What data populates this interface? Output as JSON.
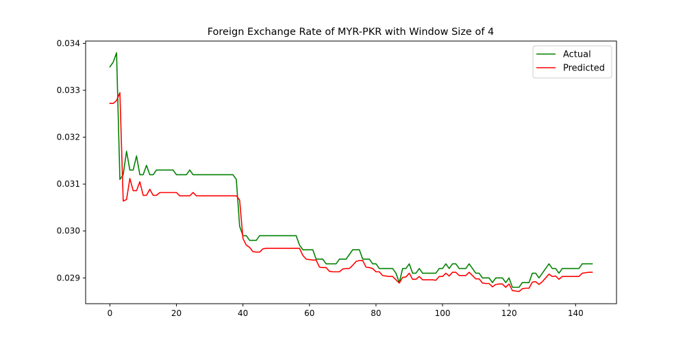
{
  "chart_data": {
    "type": "line",
    "title": "Foreign Exchange Rate of MYR-PKR with Window Size of 4",
    "xlabel": "",
    "ylabel": "",
    "xlim": [
      -7.3,
      152.3
    ],
    "ylim": [
      0.02845,
      0.03405
    ],
    "xticks": [
      0,
      20,
      40,
      60,
      80,
      100,
      120,
      140
    ],
    "xtick_labels": [
      "0",
      "20",
      "40",
      "60",
      "80",
      "100",
      "120",
      "140"
    ],
    "yticks": [
      0.029,
      0.03,
      0.031,
      0.032,
      0.033,
      0.034
    ],
    "ytick_labels": [
      "0.029",
      "0.030",
      "0.031",
      "0.032",
      "0.033",
      "0.034"
    ],
    "grid": false,
    "legend_position": "top-right",
    "series": [
      {
        "name": "Actual",
        "color": "#008000",
        "x": [
          0,
          1,
          2,
          3,
          4,
          5,
          6,
          7,
          8,
          9,
          10,
          11,
          12,
          13,
          14,
          15,
          16,
          17,
          18,
          19,
          20,
          21,
          22,
          23,
          24,
          25,
          26,
          27,
          28,
          29,
          30,
          31,
          32,
          33,
          34,
          35,
          36,
          37,
          38,
          39,
          40,
          41,
          42,
          43,
          44,
          45,
          46,
          47,
          48,
          49,
          50,
          51,
          52,
          53,
          54,
          55,
          56,
          57,
          58,
          59,
          60,
          61,
          62,
          63,
          64,
          65,
          66,
          67,
          68,
          69,
          70,
          71,
          72,
          73,
          74,
          75,
          76,
          77,
          78,
          79,
          80,
          81,
          82,
          83,
          84,
          85,
          86,
          87,
          88,
          89,
          90,
          91,
          92,
          93,
          94,
          95,
          96,
          97,
          98,
          99,
          100,
          101,
          102,
          103,
          104,
          105,
          106,
          107,
          108,
          109,
          110,
          111,
          112,
          113,
          114,
          115,
          116,
          117,
          118,
          119,
          120,
          121,
          122,
          123,
          124,
          125,
          126,
          127,
          128,
          129,
          130,
          131,
          132,
          133,
          134,
          135,
          136,
          137,
          138,
          139,
          140,
          141,
          142,
          143,
          144,
          145
        ],
        "y": [
          0.0335,
          0.0336,
          0.0338,
          0.0311,
          0.0312,
          0.0317,
          0.0313,
          0.0313,
          0.0316,
          0.0312,
          0.0312,
          0.0314,
          0.0312,
          0.0312,
          0.0313,
          0.0313,
          0.0313,
          0.0313,
          0.0313,
          0.0313,
          0.0312,
          0.0312,
          0.0312,
          0.0312,
          0.0313,
          0.0312,
          0.0312,
          0.0312,
          0.0312,
          0.0312,
          0.0312,
          0.0312,
          0.0312,
          0.0312,
          0.0312,
          0.0312,
          0.0312,
          0.0312,
          0.0311,
          0.0301,
          0.0299,
          0.0299,
          0.0298,
          0.0298,
          0.0298,
          0.0299,
          0.0299,
          0.0299,
          0.0299,
          0.0299,
          0.0299,
          0.0299,
          0.0299,
          0.0299,
          0.0299,
          0.0299,
          0.0299,
          0.0297,
          0.0296,
          0.0296,
          0.0296,
          0.0296,
          0.0294,
          0.0294,
          0.0294,
          0.0293,
          0.0293,
          0.0293,
          0.0293,
          0.0294,
          0.0294,
          0.0294,
          0.0295,
          0.0296,
          0.0296,
          0.0296,
          0.0294,
          0.0294,
          0.0294,
          0.0293,
          0.0293,
          0.0292,
          0.0292,
          0.0292,
          0.0292,
          0.0292,
          0.0291,
          0.0289,
          0.0292,
          0.0292,
          0.0293,
          0.0291,
          0.0291,
          0.0292,
          0.0291,
          0.0291,
          0.0291,
          0.0291,
          0.0291,
          0.0292,
          0.0292,
          0.0293,
          0.0292,
          0.0293,
          0.0293,
          0.0292,
          0.0292,
          0.0292,
          0.0293,
          0.0292,
          0.0291,
          0.0291,
          0.029,
          0.029,
          0.029,
          0.0289,
          0.029,
          0.029,
          0.029,
          0.0289,
          0.029,
          0.0288,
          0.0288,
          0.0288,
          0.0289,
          0.0289,
          0.0289,
          0.0291,
          0.0291,
          0.029,
          0.0291,
          0.0292,
          0.0293,
          0.0292,
          0.0292,
          0.0291,
          0.0292,
          0.0292,
          0.0292,
          0.0292,
          0.0292,
          0.0292,
          0.0293,
          0.0293,
          0.0293,
          0.0293
        ]
      },
      {
        "name": "Predicted",
        "color": "#ff0000",
        "x": [
          0,
          1,
          2,
          3,
          4,
          5,
          6,
          7,
          8,
          9,
          10,
          11,
          12,
          13,
          14,
          15,
          16,
          17,
          18,
          19,
          20,
          21,
          22,
          23,
          24,
          25,
          26,
          27,
          28,
          29,
          30,
          31,
          32,
          33,
          34,
          35,
          36,
          37,
          38,
          39,
          40,
          41,
          42,
          43,
          44,
          45,
          46,
          47,
          48,
          49,
          50,
          51,
          52,
          53,
          54,
          55,
          56,
          57,
          58,
          59,
          60,
          61,
          62,
          63,
          64,
          65,
          66,
          67,
          68,
          69,
          70,
          71,
          72,
          73,
          74,
          75,
          76,
          77,
          78,
          79,
          80,
          81,
          82,
          83,
          84,
          85,
          86,
          87,
          88,
          89,
          90,
          91,
          92,
          93,
          94,
          95,
          96,
          97,
          98,
          99,
          100,
          101,
          102,
          103,
          104,
          105,
          106,
          107,
          108,
          109,
          110,
          111,
          112,
          113,
          114,
          115,
          116,
          117,
          118,
          119,
          120,
          121,
          122,
          123,
          124,
          125,
          126,
          127,
          128,
          129,
          130,
          131,
          132,
          133,
          134,
          135,
          136,
          137,
          138,
          139,
          140,
          141,
          142,
          143,
          144,
          145
        ],
        "y": [
          0.03272,
          0.03272,
          0.03278,
          0.03295,
          0.03064,
          0.03067,
          0.03112,
          0.03086,
          0.03086,
          0.03105,
          0.03076,
          0.03076,
          0.03089,
          0.03076,
          0.03076,
          0.03082,
          0.03082,
          0.03082,
          0.03082,
          0.03082,
          0.03082,
          0.03075,
          0.03075,
          0.03075,
          0.03075,
          0.03082,
          0.03075,
          0.03075,
          0.03075,
          0.03075,
          0.03075,
          0.03075,
          0.03075,
          0.03075,
          0.03075,
          0.03075,
          0.03075,
          0.03075,
          0.03075,
          0.03066,
          0.02984,
          0.0297,
          0.02965,
          0.02956,
          0.02955,
          0.02955,
          0.02962,
          0.02963,
          0.02963,
          0.02963,
          0.02963,
          0.02963,
          0.02963,
          0.02963,
          0.02963,
          0.02963,
          0.02963,
          0.02963,
          0.02948,
          0.0294,
          0.02939,
          0.02938,
          0.02938,
          0.02923,
          0.02922,
          0.02922,
          0.02914,
          0.02913,
          0.02913,
          0.02913,
          0.02919,
          0.0292,
          0.0292,
          0.02927,
          0.02935,
          0.02937,
          0.02937,
          0.02923,
          0.02922,
          0.0292,
          0.02913,
          0.02913,
          0.02905,
          0.02904,
          0.02903,
          0.02903,
          0.02896,
          0.02889,
          0.02901,
          0.02902,
          0.0291,
          0.02897,
          0.02897,
          0.02903,
          0.02896,
          0.02896,
          0.02896,
          0.02896,
          0.02895,
          0.02903,
          0.02903,
          0.0291,
          0.02904,
          0.02912,
          0.02912,
          0.02905,
          0.02905,
          0.02905,
          0.02912,
          0.02905,
          0.02898,
          0.02898,
          0.02889,
          0.02888,
          0.02888,
          0.02881,
          0.02886,
          0.02887,
          0.02887,
          0.0288,
          0.02887,
          0.02873,
          0.02872,
          0.02871,
          0.02877,
          0.02878,
          0.02878,
          0.02891,
          0.02892,
          0.02886,
          0.02892,
          0.029,
          0.02908,
          0.02903,
          0.02904,
          0.02897,
          0.02903,
          0.02903,
          0.02903,
          0.02903,
          0.02903,
          0.02903,
          0.0291,
          0.02911,
          0.02912,
          0.02912
        ]
      }
    ]
  }
}
